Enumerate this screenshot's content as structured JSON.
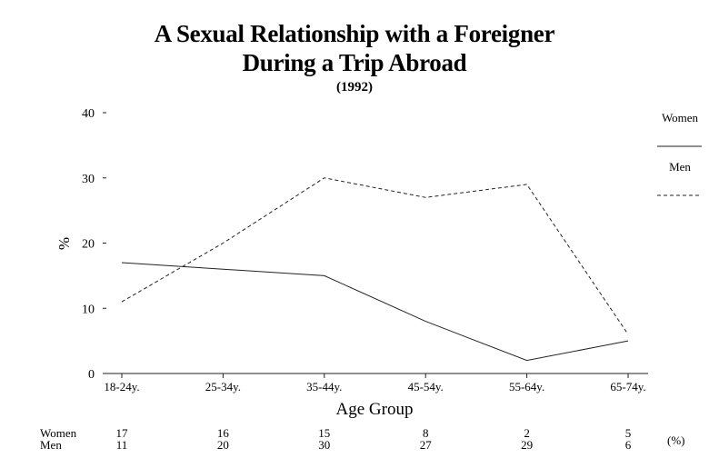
{
  "chart_data": {
    "type": "line",
    "title": "A Sexual Relationship with a Foreigner",
    "title_line2": "During a Trip Abroad",
    "subtitle": "(1992)",
    "categories": [
      "18-24y.",
      "25-34y.",
      "35-44y.",
      "45-54y.",
      "55-64y.",
      "65-74y."
    ],
    "series": [
      {
        "name": "Women",
        "values": [
          17,
          16,
          15,
          8,
          2,
          5
        ],
        "style": "solid"
      },
      {
        "name": "Men",
        "values": [
          11,
          20,
          30,
          27,
          29,
          6
        ],
        "style": "dashed"
      }
    ],
    "xlabel": "Age Group",
    "ylabel": "%",
    "ylim": [
      0,
      40
    ],
    "yticks": [
      "0",
      "10",
      "20",
      "30",
      "40"
    ],
    "legend_position": "right",
    "grid": false,
    "table_unit": "(%)",
    "table_rows": [
      {
        "label": "Women",
        "values": [
          "17",
          "16",
          "15",
          "8",
          "2",
          "5"
        ]
      },
      {
        "label": "Men",
        "values": [
          "11",
          "20",
          "30",
          "27",
          "29",
          "6"
        ]
      }
    ],
    "line_color": "#222222"
  }
}
